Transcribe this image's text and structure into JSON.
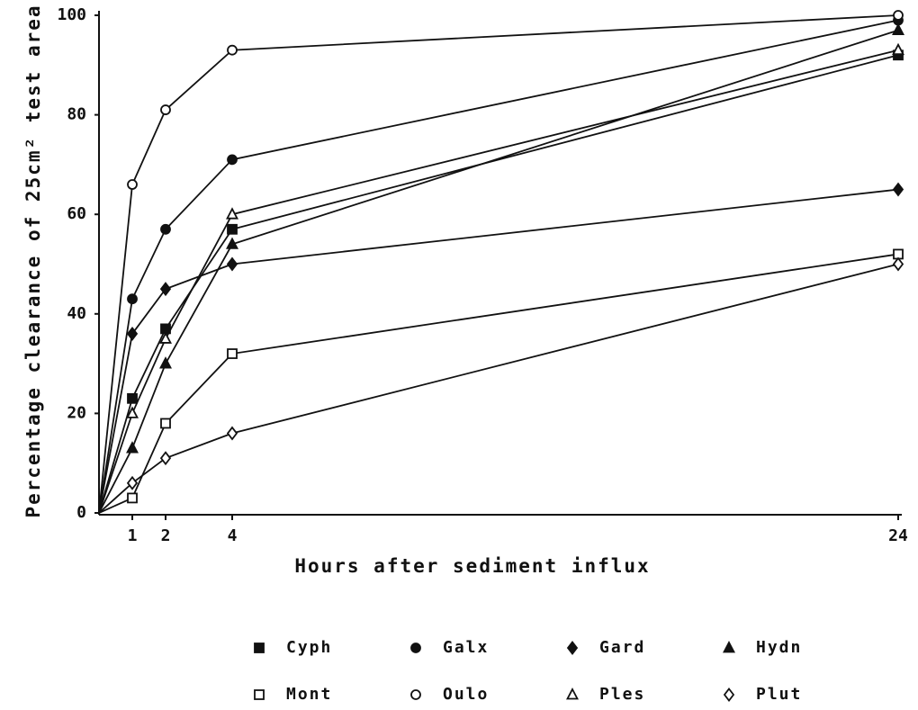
{
  "chart_data": {
    "type": "line",
    "x_label": "Hours after sediment influx",
    "y_label": "Percentage clearance of 25cm² test area",
    "x": [
      0,
      1,
      2,
      4,
      24
    ],
    "xlim": [
      0,
      24
    ],
    "xticks": [
      1,
      2,
      4,
      24
    ],
    "ylim": [
      0,
      100
    ],
    "yticks": [
      0,
      20,
      40,
      60,
      80,
      100
    ],
    "series": [
      {
        "name": "Cyph",
        "color": "#111111",
        "marker": "square",
        "filled": true,
        "values": [
          0,
          23,
          37,
          57,
          92
        ]
      },
      {
        "name": "Galx",
        "color": "#111111",
        "marker": "circle",
        "filled": true,
        "values": [
          0,
          43,
          57,
          71,
          99
        ]
      },
      {
        "name": "Gard",
        "color": "#111111",
        "marker": "diamond",
        "filled": true,
        "values": [
          0,
          36,
          45,
          50,
          65
        ]
      },
      {
        "name": "Hydn",
        "color": "#111111",
        "marker": "triangle",
        "filled": true,
        "values": [
          0,
          13,
          30,
          54,
          97
        ]
      },
      {
        "name": "Mont",
        "color": "#111111",
        "marker": "square",
        "filled": false,
        "values": [
          0,
          3,
          18,
          32,
          52
        ]
      },
      {
        "name": "Oulo",
        "color": "#111111",
        "marker": "circle",
        "filled": false,
        "values": [
          0,
          66,
          81,
          93,
          100
        ]
      },
      {
        "name": "Ples",
        "color": "#111111",
        "marker": "triangle",
        "filled": false,
        "values": [
          0,
          20,
          35,
          60,
          93
        ]
      },
      {
        "name": "Plut",
        "color": "#111111",
        "marker": "diamond",
        "filled": false,
        "values": [
          0,
          6,
          11,
          16,
          50
        ]
      }
    ]
  }
}
